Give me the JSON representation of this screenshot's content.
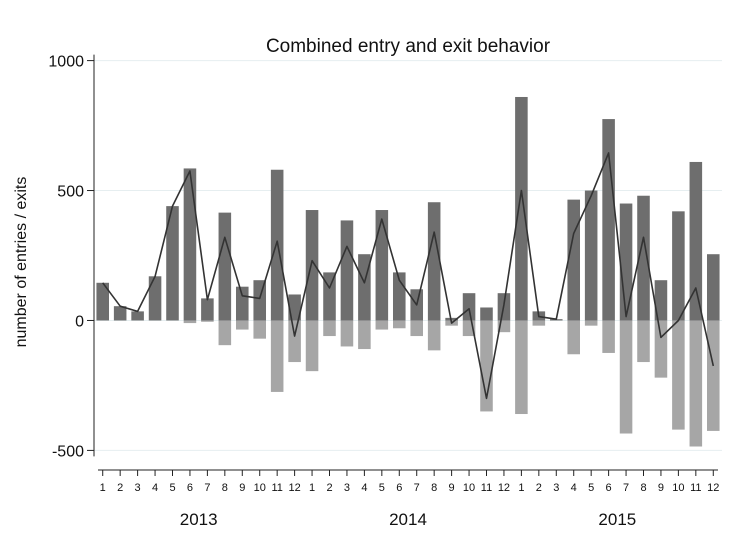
{
  "chart_data": {
    "type": "bar",
    "title": "Combined entry and exit behavior",
    "ylabel": "number of entries / exits",
    "xlabel": "",
    "ylim": [
      -560,
      1010
    ],
    "yticks": [
      -500,
      0,
      500,
      1000
    ],
    "grid": true,
    "legend": "none",
    "categories": [
      "1",
      "2",
      "3",
      "4",
      "5",
      "6",
      "7",
      "8",
      "9",
      "10",
      "11",
      "12",
      "1",
      "2",
      "3",
      "4",
      "5",
      "6",
      "7",
      "8",
      "9",
      "10",
      "11",
      "12",
      "1",
      "2",
      "3",
      "4",
      "5",
      "6",
      "7",
      "8",
      "9",
      "10",
      "11",
      "12"
    ],
    "years": [
      {
        "label": "2013",
        "months": 12
      },
      {
        "label": "2014",
        "months": 12
      },
      {
        "label": "2015",
        "months": 12
      }
    ],
    "series": [
      {
        "kind": "bar",
        "color": "#6e6e6e",
        "values": [
          145,
          55,
          35,
          170,
          440,
          585,
          85,
          415,
          130,
          155,
          580,
          100,
          425,
          185,
          385,
          255,
          425,
          185,
          120,
          455,
          10,
          105,
          50,
          105,
          860,
          35,
          5,
          465,
          500,
          775,
          450,
          480,
          155,
          420,
          610,
          255
        ]
      },
      {
        "kind": "bar",
        "color": "#a6a6a6",
        "values": [
          0,
          0,
          0,
          0,
          0,
          -10,
          -5,
          -95,
          -35,
          -70,
          -275,
          -160,
          -195,
          -60,
          -100,
          -110,
          -35,
          -30,
          -60,
          -115,
          -20,
          -60,
          -350,
          -45,
          -360,
          -20,
          0,
          -130,
          -20,
          -125,
          -435,
          -160,
          -220,
          -420,
          -485,
          -425
        ]
      },
      {
        "kind": "line",
        "color": "#333333",
        "values": [
          145,
          55,
          35,
          170,
          440,
          575,
          80,
          320,
          95,
          85,
          305,
          -60,
          230,
          125,
          285,
          145,
          390,
          155,
          60,
          340,
          -10,
          45,
          -300,
          60,
          500,
          15,
          5,
          335,
          480,
          645,
          15,
          320,
          -65,
          0,
          125,
          -175
        ]
      }
    ]
  }
}
